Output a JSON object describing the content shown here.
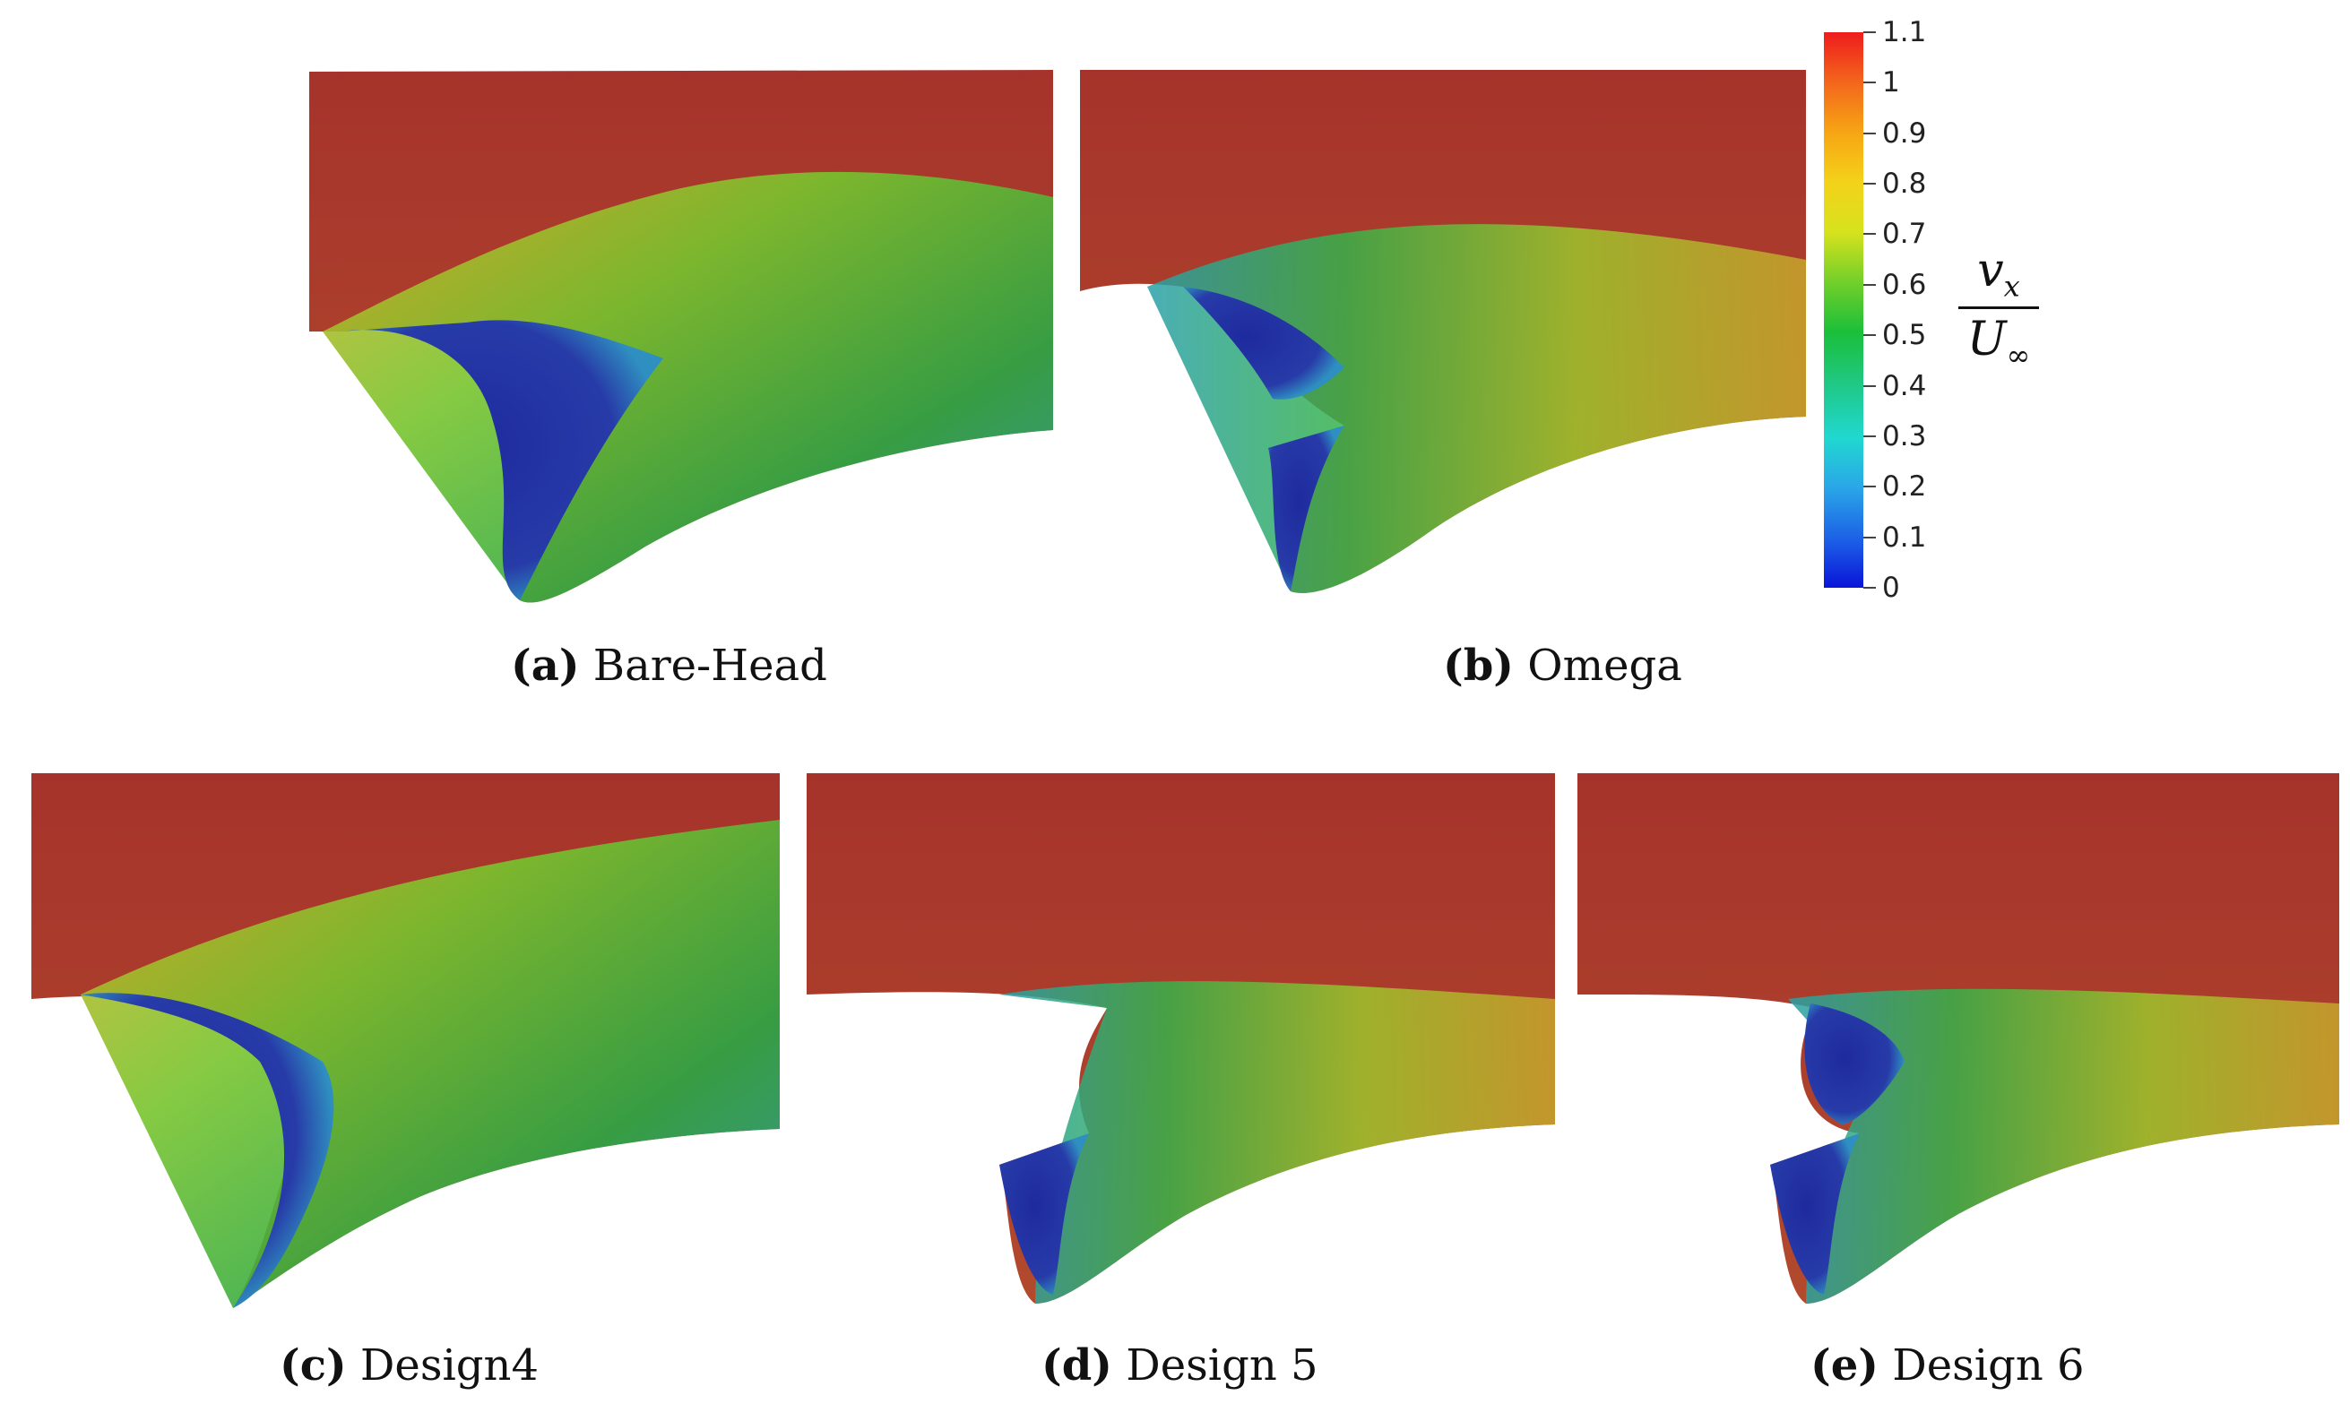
{
  "panels": [
    {
      "id": "a",
      "letter": "(a)",
      "label": "Bare-Head"
    },
    {
      "id": "b",
      "letter": "(b)",
      "label": "Omega"
    },
    {
      "id": "c",
      "letter": "(c)",
      "label": "Design4"
    },
    {
      "id": "d",
      "letter": "(d)",
      "label": "Design 5"
    },
    {
      "id": "e",
      "letter": "(e)",
      "label": "Design 6"
    }
  ],
  "colorbar": {
    "ticks": [
      "1.1",
      "1",
      "0.9",
      "0.8",
      "0.7",
      "0.6",
      "0.5",
      "0.4",
      "0.3",
      "0.2",
      "0.1",
      "0"
    ],
    "range": [
      0,
      1.1
    ],
    "title_numerator": "v",
    "title_numerator_sub": "x",
    "title_denominator": "U",
    "title_denominator_sub": "∞",
    "colors": {
      "min": "#0a14d8",
      "mid": "#1bbf3a",
      "max": "#ee1c1c",
      "field": "#a8322a"
    }
  }
}
